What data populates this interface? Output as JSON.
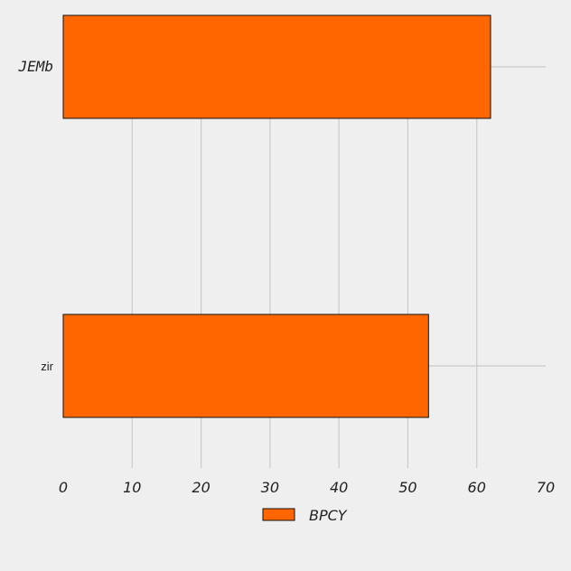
{
  "chart_data": {
    "type": "bar",
    "orientation": "horizontal",
    "categories": [
      "JEMb",
      "zir"
    ],
    "series": [
      {
        "name": "BPCY",
        "values": [
          62,
          53
        ],
        "color": "#ff6600"
      }
    ],
    "xlim": [
      0,
      70
    ],
    "xticks": [
      "0",
      "10",
      "20",
      "30",
      "40",
      "50",
      "60",
      "70"
    ],
    "grid": true,
    "legend": "bottom-center",
    "title": "",
    "xlabel": "",
    "ylabel": ""
  }
}
